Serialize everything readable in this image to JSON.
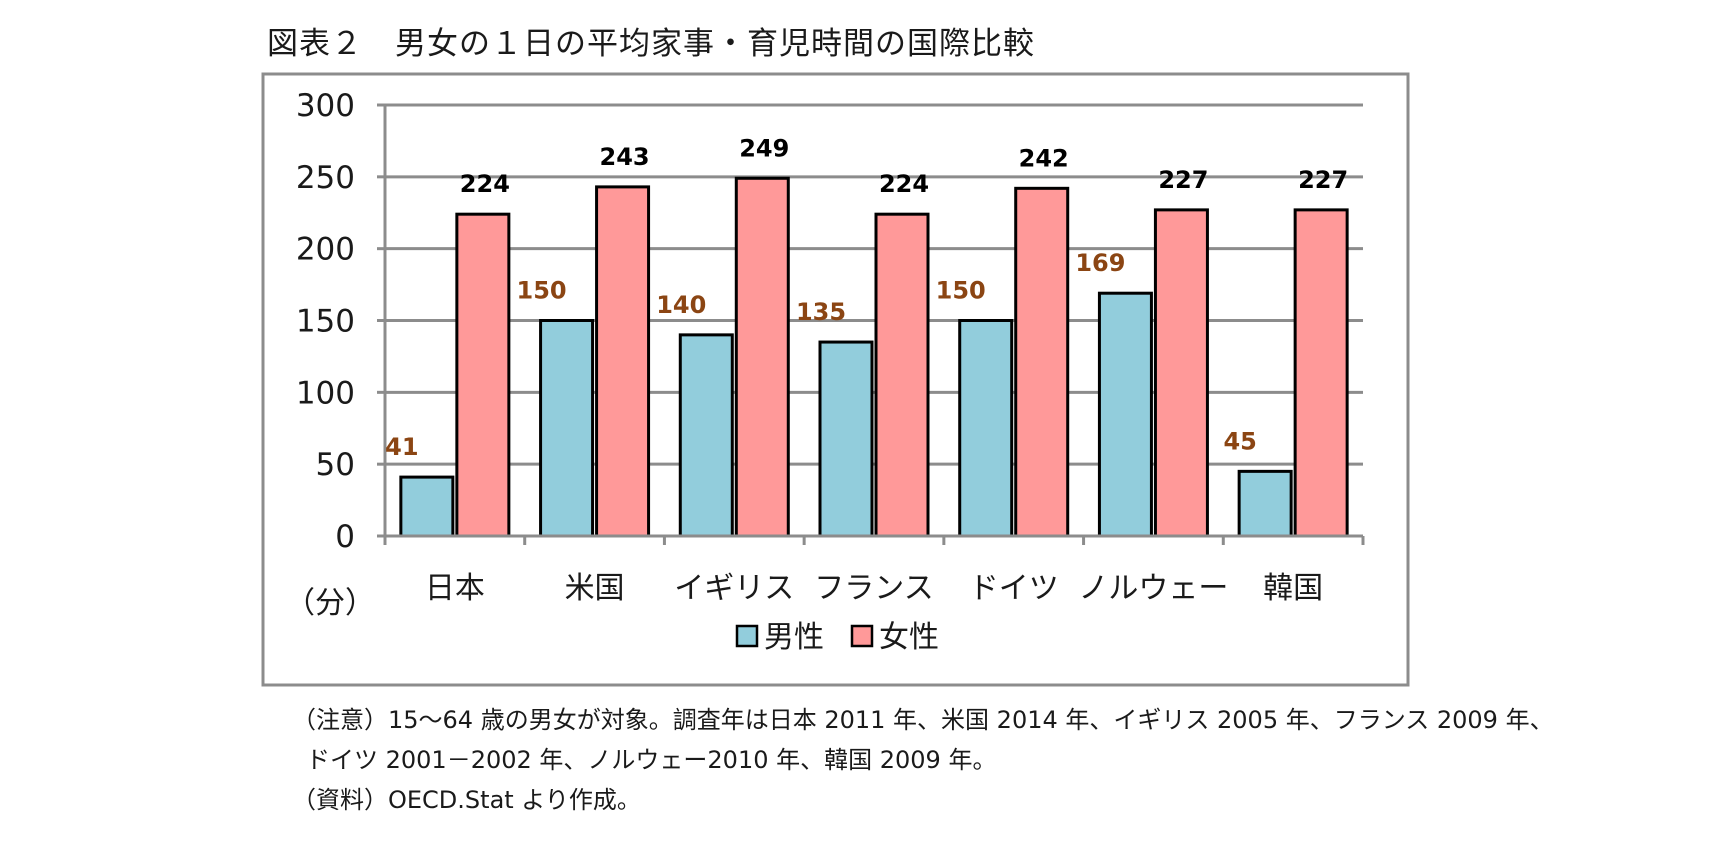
{
  "chart_data": {
    "type": "bar",
    "title": "図表２　男女の１日の平均家事・育児時間の国際比較",
    "ylabel": "（分）",
    "ylim": [
      0,
      300
    ],
    "yticks": [
      0,
      50,
      100,
      150,
      200,
      250,
      300
    ],
    "grid": true,
    "legend_position": "bottom",
    "categories": [
      "日本",
      "米国",
      "イギリス",
      "フランス",
      "ドイツ",
      "ノルウェー",
      "韓国"
    ],
    "series": [
      {
        "name": "男性",
        "values": [
          41,
          150,
          140,
          135,
          150,
          169,
          45
        ],
        "color": "#92cddc",
        "label_color": "#8b4513"
      },
      {
        "name": "女性",
        "values": [
          224,
          243,
          249,
          224,
          242,
          227,
          227
        ],
        "color": "#ff9999",
        "label_color": "#000000"
      }
    ]
  },
  "notes": [
    "（注意）15～64 歳の男女が対象。調査年は日本 2011 年、米国 2014 年、イギリス 2005 年、フランス 2009 年、",
    "ドイツ 2001－2002 年、ノルウェー2010 年、韓国 2009 年。",
    "（資料）OECD.Stat より作成。"
  ]
}
